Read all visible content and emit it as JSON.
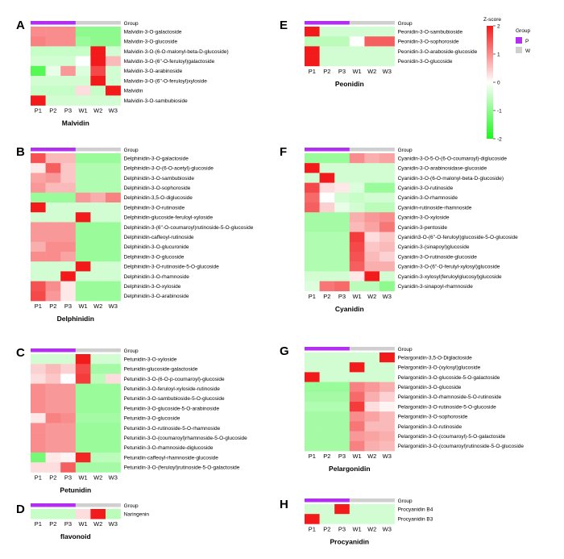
{
  "colors": {
    "low": "#1df51d",
    "mid": "#ffffff",
    "high": "#f21a1a",
    "group_P": "#b22ff0",
    "group_W": "#cfcfcf"
  },
  "legend": {
    "zscore_title": "Z-score",
    "group_title": "Group",
    "ticks": [
      "2",
      "1",
      "0",
      "-1",
      "-2"
    ],
    "groups": [
      {
        "label": "P",
        "color": "#b22ff0"
      },
      {
        "label": "W",
        "color": "#cfcfcf"
      }
    ]
  },
  "chart_data": [
    {
      "type": "heatmap",
      "panel": "A",
      "title": "Malvidin",
      "group_label": "Group",
      "columns": [
        "P1",
        "P2",
        "P3",
        "W1",
        "W2",
        "W3"
      ],
      "groups": [
        "P",
        "P",
        "P",
        "W",
        "W",
        "W"
      ],
      "rows": [
        "Malvidin-3-O-galactoside",
        "Malvidin-3-O-glucoside",
        "Malvidin-3-O-(6-O-malonyl-beta-D-glucoside)",
        "Malvidin-3-O-(6''-O-feruloyl)galactoside",
        "Malvidin-3-O-arabinoside",
        "Malvidin-3-O-(6''-O-feruloyl)xyloside",
        "Malvidin",
        "Malvidin-3-O-sambubioside"
      ],
      "values": [
        [
          1.0,
          1.0,
          1.0,
          -1.0,
          -1.0,
          -1.0
        ],
        [
          1.1,
          1.0,
          1.0,
          -0.9,
          -1.0,
          -1.0
        ],
        [
          -0.5,
          -0.5,
          -0.5,
          -0.5,
          2.0,
          -0.4
        ],
        [
          -0.4,
          -0.4,
          -0.4,
          0.0,
          2.0,
          0.6
        ],
        [
          -1.5,
          -0.2,
          0.9,
          -0.3,
          1.6,
          -0.4
        ],
        [
          -0.4,
          -0.4,
          -0.4,
          -0.4,
          2.0,
          -0.4
        ],
        [
          -0.5,
          -0.5,
          -0.5,
          0.3,
          -0.5,
          2.0
        ],
        [
          2.0,
          -0.4,
          -0.4,
          -0.4,
          -0.4,
          -0.4
        ]
      ]
    },
    {
      "type": "heatmap",
      "panel": "E",
      "title": "Peonidin",
      "group_label": "Group",
      "columns": [
        "P1",
        "P2",
        "P3",
        "W1",
        "W2",
        "W3"
      ],
      "groups": [
        "P",
        "P",
        "P",
        "W",
        "W",
        "W"
      ],
      "rows": [
        "Peonidin-3-O-sambubioside",
        "Peonidin-3-O-sophoroside",
        "Peonidin-3-O-araboside-glucoside",
        "Peonidin-3-O-glucoside"
      ],
      "values": [
        [
          2.0,
          -0.4,
          -0.4,
          -0.4,
          -0.4,
          -0.4
        ],
        [
          -0.6,
          -0.6,
          -0.6,
          0.0,
          1.4,
          1.4
        ],
        [
          2.0,
          -0.4,
          -0.4,
          -0.4,
          -0.4,
          -0.4
        ],
        [
          2.0,
          -0.4,
          -0.4,
          -0.4,
          -0.4,
          -0.4
        ]
      ]
    },
    {
      "type": "heatmap",
      "panel": "B",
      "title": "Delphinidin",
      "group_label": "Group",
      "columns": [
        "P1",
        "P2",
        "P3",
        "W1",
        "W2",
        "W3"
      ],
      "groups": [
        "P",
        "P",
        "P",
        "W",
        "W",
        "W"
      ],
      "rows": [
        "Delphinidin-3-O-galactoside",
        "Delphinidin-3-O-(6-O-acetyl)-glucoside",
        "Delphinidin-3-O-sambubioside",
        "Delphinidin-3-O-sophoroside",
        "Delphinidin-3,5-O-diglucoside",
        "Delphinidin-3-O-rutinoside",
        "Delphinidin-glucoside-feruloyl-xyloside",
        "Delphinidin-3-(6''-O-coumaroyl)rutinoside-5-O-glucoside",
        "Delphinidin-caffeoyl-rutinoside",
        "Delphinidin-3-O-glucuronide",
        "Delphinidin-3-O-glucoside",
        "Delphinidin-3-O-rutinoside-5-O-glucoside",
        "Delphinidin-3-O-rhamnoside",
        "Delphinidin-3-O-xyloside",
        "Delphinidin-3-O-arabinoside"
      ],
      "values": [
        [
          1.5,
          0.6,
          0.6,
          -0.9,
          -0.9,
          -0.9
        ],
        [
          0.2,
          1.4,
          0.5,
          -0.7,
          -0.7,
          -0.7
        ],
        [
          0.8,
          0.9,
          0.5,
          -0.7,
          -0.7,
          -0.7
        ],
        [
          0.9,
          0.6,
          0.6,
          -0.7,
          -0.7,
          -0.7
        ],
        [
          -0.9,
          -0.9,
          -0.9,
          0.9,
          0.7,
          1.1
        ],
        [
          2.0,
          -0.4,
          -0.4,
          -0.4,
          -0.4,
          -0.4
        ],
        [
          -0.4,
          -0.4,
          -0.4,
          2.0,
          -0.4,
          -0.4
        ],
        [
          0.9,
          0.9,
          0.9,
          -0.9,
          -0.9,
          -0.9
        ],
        [
          0.9,
          0.9,
          0.9,
          -0.9,
          -0.9,
          -0.9
        ],
        [
          0.7,
          1.0,
          1.0,
          -0.9,
          -0.9,
          -0.9
        ],
        [
          1.0,
          1.0,
          0.8,
          -0.9,
          -0.9,
          -0.9
        ],
        [
          -0.4,
          -0.4,
          -0.4,
          2.0,
          -0.4,
          -0.4
        ],
        [
          -0.4,
          -0.4,
          2.0,
          -0.4,
          -0.4,
          -0.4
        ],
        [
          1.5,
          1.0,
          0.2,
          -0.9,
          -0.9,
          -0.9
        ],
        [
          1.6,
          0.9,
          0.2,
          -0.9,
          -0.9,
          -0.9
        ]
      ]
    },
    {
      "type": "heatmap",
      "panel": "F",
      "title": "Cyanidin",
      "group_label": "Group",
      "columns": [
        "P1",
        "P2",
        "P3",
        "W1",
        "W2",
        "W3"
      ],
      "groups": [
        "P",
        "P",
        "P",
        "W",
        "W",
        "W"
      ],
      "rows": [
        "Cyanidin-3-O-5-O-(6-O-coumaroyl)-diglucoside",
        "Cyanidin-3-O-arabinosidase-glucoside",
        "Cyanidin-3-O-(6-O-malonyl-beta-D-glucoside)",
        "Cyanidin-3-O-rutinoside",
        "Cyanidin-3-O-rhamnoside",
        "Cyanidin-rutinoside-rhamnoside",
        "Cyanidin-3-O-xyloside",
        "Cyanidin-3-pentoside",
        "Cyanidin3-O-(6''-O-feruloyl)glucoside-5-O-glucoside",
        "Cyanidin-3-(sinapoyl)glucoside",
        "Cyanidin-3-O-rutinoside-glucoside",
        "Cyanidin-3-O-(6''-O-ferulyl-xylosyl)glucoside",
        "Cyanidin-3-xylosyl(feruloylglucosyl)glucoside",
        "Cyanidin-3-sinapoyl-rhamnoside"
      ],
      "values": [
        [
          -0.9,
          -0.9,
          -0.9,
          1.0,
          0.7,
          0.8
        ],
        [
          2.0,
          -0.4,
          -0.4,
          -0.4,
          -0.4,
          -0.4
        ],
        [
          -0.4,
          2.0,
          -0.4,
          -0.4,
          -0.4,
          -0.4
        ],
        [
          1.6,
          0.3,
          0.2,
          -0.3,
          -0.9,
          -0.9
        ],
        [
          1.3,
          0.0,
          -0.4,
          -0.5,
          -0.4,
          -0.4
        ],
        [
          1.4,
          0.4,
          -0.2,
          -0.4,
          -0.6,
          -0.6
        ],
        [
          -0.8,
          -0.8,
          -0.8,
          0.7,
          0.9,
          1.0
        ],
        [
          -0.8,
          -0.8,
          -0.8,
          0.6,
          0.8,
          1.2
        ],
        [
          -0.7,
          -0.7,
          -0.7,
          1.7,
          0.3,
          0.5
        ],
        [
          -0.7,
          -0.7,
          -0.7,
          1.6,
          0.5,
          0.6
        ],
        [
          -0.7,
          -0.7,
          -0.7,
          1.5,
          0.6,
          0.4
        ],
        [
          -0.7,
          -0.7,
          -0.7,
          1.4,
          0.7,
          0.7
        ],
        [
          -0.4,
          -0.4,
          -0.4,
          0.2,
          2.0,
          -0.4
        ],
        [
          -0.3,
          1.2,
          1.3,
          -0.6,
          -0.6,
          -1.0
        ]
      ]
    },
    {
      "type": "heatmap",
      "panel": "C",
      "title": "Petunidin",
      "group_label": "Group",
      "columns": [
        "P1",
        "P2",
        "P3",
        "W1",
        "W2",
        "W3"
      ],
      "groups": [
        "P",
        "P",
        "P",
        "W",
        "W",
        "W"
      ],
      "rows": [
        "Petunidin-3-O-xyloside",
        "Petunidin-glucoside-galactoside",
        "Petunidin-3-O-(6-O-p-coumaroyl)-glucoside",
        "Petunidin-3-O-feruloyl-xyloside-rutinoside",
        "Petunidin-3-O-sambubioside-5-O-glucoside",
        "Petunidin-3-O-glucoside-5-O-arabinoside",
        "Petunidin-3-O-glucoside",
        "Petunidin-3-O-rutinoside-5-O-rhamnoside",
        "Petunidin-3-O-(coumaroyl)rhamnoside-5-O-glucoside",
        "Petunidin-3-O-rhamnoside-diglucoside",
        "Petunidin-caffeoyl-rhamnoside-glucoside",
        "Petunidin-3-O-(feruloyl)rutinoside-5-O-galactoside"
      ],
      "values": [
        [
          -0.4,
          -0.4,
          -0.4,
          2.0,
          -0.4,
          -0.4
        ],
        [
          0.4,
          0.6,
          0.4,
          1.6,
          -0.8,
          -0.8
        ],
        [
          0.3,
          0.5,
          0.0,
          1.7,
          -0.6,
          0.3
        ],
        [
          1.0,
          0.9,
          0.9,
          -0.9,
          -0.9,
          -0.9
        ],
        [
          1.0,
          0.9,
          0.9,
          -0.9,
          -0.9,
          -0.9
        ],
        [
          1.0,
          0.9,
          0.9,
          -0.9,
          -0.9,
          -0.9
        ],
        [
          0.2,
          1.1,
          1.0,
          -0.8,
          -0.8,
          -0.8
        ],
        [
          1.0,
          0.9,
          0.9,
          -0.9,
          -0.9,
          -0.9
        ],
        [
          1.0,
          0.9,
          0.9,
          -0.9,
          -0.9,
          -0.9
        ],
        [
          1.0,
          0.9,
          0.9,
          -0.9,
          -0.9,
          -0.9
        ],
        [
          -1.2,
          0.2,
          0.1,
          1.9,
          -0.6,
          -0.6
        ],
        [
          0.3,
          0.3,
          1.4,
          -0.8,
          -0.8,
          -0.8
        ]
      ]
    },
    {
      "type": "heatmap",
      "panel": "G",
      "title": "Pelargonidin",
      "group_label": "Group",
      "columns": [
        "P1",
        "P2",
        "P3",
        "W1",
        "W2",
        "W3"
      ],
      "groups": [
        "P",
        "P",
        "P",
        "W",
        "W",
        "W"
      ],
      "rows": [
        "Pelargonidin-3,5-O-Diglactoside",
        "Pelargonidin-3-O-(xylosyl)glucoside",
        "Pelargonidin-3-O-glucoside-5-O-galactoside",
        "Pelargonidin-3-O-glucoside",
        "Pelargonidin-3-O-rhamnoside-5-O-rutinoside",
        "Pelargonidin-3-O-rutinoside-5-O-glucoside",
        "Pelargonidin-3-O-sophoroside",
        "Pelargonidin-3-O-rutinoside",
        "Pelargonidin-3-O-(coumaroyl)-5-O-galactoside",
        "Pelargonidin-3-O-(coumaroyl)rutinoside-5-O-glucoside"
      ],
      "values": [
        [
          -0.4,
          -0.4,
          -0.4,
          -0.4,
          -0.4,
          2.0
        ],
        [
          -0.4,
          -0.4,
          -0.4,
          2.0,
          -0.4,
          -0.4
        ],
        [
          2.0,
          -0.4,
          -0.4,
          -0.4,
          -0.4,
          -0.4
        ],
        [
          -0.9,
          -0.9,
          -0.9,
          1.1,
          0.9,
          0.7
        ],
        [
          -0.8,
          -0.8,
          -0.8,
          1.3,
          0.7,
          0.4
        ],
        [
          -0.7,
          -0.7,
          -0.7,
          1.7,
          0.3,
          0.1
        ],
        [
          -0.8,
          -0.8,
          -0.8,
          1.0,
          0.8,
          0.6
        ],
        [
          -0.8,
          -0.8,
          -0.8,
          1.2,
          0.6,
          0.6
        ],
        [
          -0.8,
          -0.8,
          -0.8,
          0.9,
          0.8,
          0.7
        ],
        [
          -0.8,
          -0.8,
          -0.8,
          1.1,
          0.7,
          0.6
        ]
      ]
    },
    {
      "type": "heatmap",
      "panel": "D",
      "title": "flavonoid",
      "group_label": "Group",
      "columns": [
        "P1",
        "P2",
        "P3",
        "W1",
        "W2",
        "W3"
      ],
      "groups": [
        "P",
        "P",
        "P",
        "W",
        "W",
        "W"
      ],
      "rows": [
        "Naringenin"
      ],
      "values": [
        [
          -0.5,
          -0.5,
          -0.5,
          0.3,
          2.0,
          -0.6
        ]
      ]
    },
    {
      "type": "heatmap",
      "panel": "H",
      "title": "Procyanidin",
      "group_label": "Group",
      "columns": [
        "P1",
        "P2",
        "P3",
        "W1",
        "W2",
        "W3"
      ],
      "groups": [
        "P",
        "P",
        "P",
        "W",
        "W",
        "W"
      ],
      "rows": [
        "Procyanidin B4",
        "Procyanidin B3"
      ],
      "values": [
        [
          -0.4,
          -0.4,
          2.0,
          -0.4,
          -0.4,
          -0.4
        ],
        [
          2.0,
          -0.4,
          -0.4,
          -0.4,
          -0.4,
          -0.4
        ]
      ]
    }
  ]
}
